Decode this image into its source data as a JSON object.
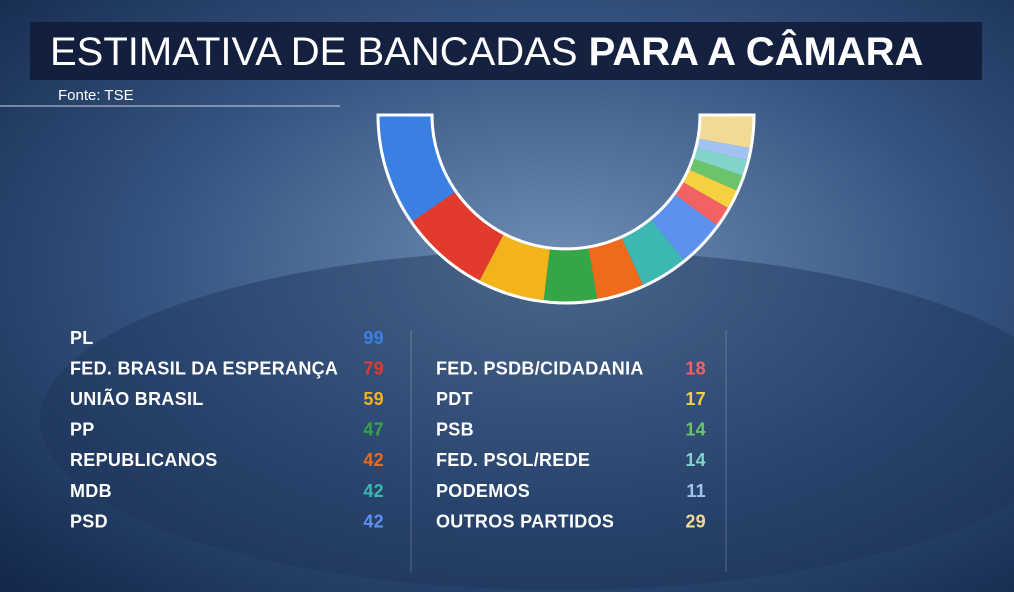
{
  "chart_data": {
    "type": "half-donut",
    "title": "ESTIMATIVA DE BANCADAS",
    "title_bold": "PARA A CÂMARA",
    "source": "Fonte: TSE",
    "categories": [
      "PL",
      "FED. BRASIL DA ESPERANÇA",
      "UNIÃO BRASIL",
      "PP",
      "REPUBLICANOS",
      "MDB",
      "PSD",
      "FED. PSDB/CIDADANIA",
      "PDT",
      "PSB",
      "FED. PSOL/REDE",
      "PODEMOS",
      "OUTROS PARTIDOS"
    ],
    "values": [
      99,
      79,
      59,
      47,
      42,
      42,
      42,
      18,
      17,
      14,
      14,
      11,
      29
    ],
    "colors": [
      "#3b7fe3",
      "#e23a2c",
      "#f2b31b",
      "#36a548",
      "#f06a1b",
      "#3cb7b1",
      "#5e90ef",
      "#f26262",
      "#f5d142",
      "#6cc46a",
      "#82d3ca",
      "#a2c3f1",
      "#f1da93"
    ]
  }
}
